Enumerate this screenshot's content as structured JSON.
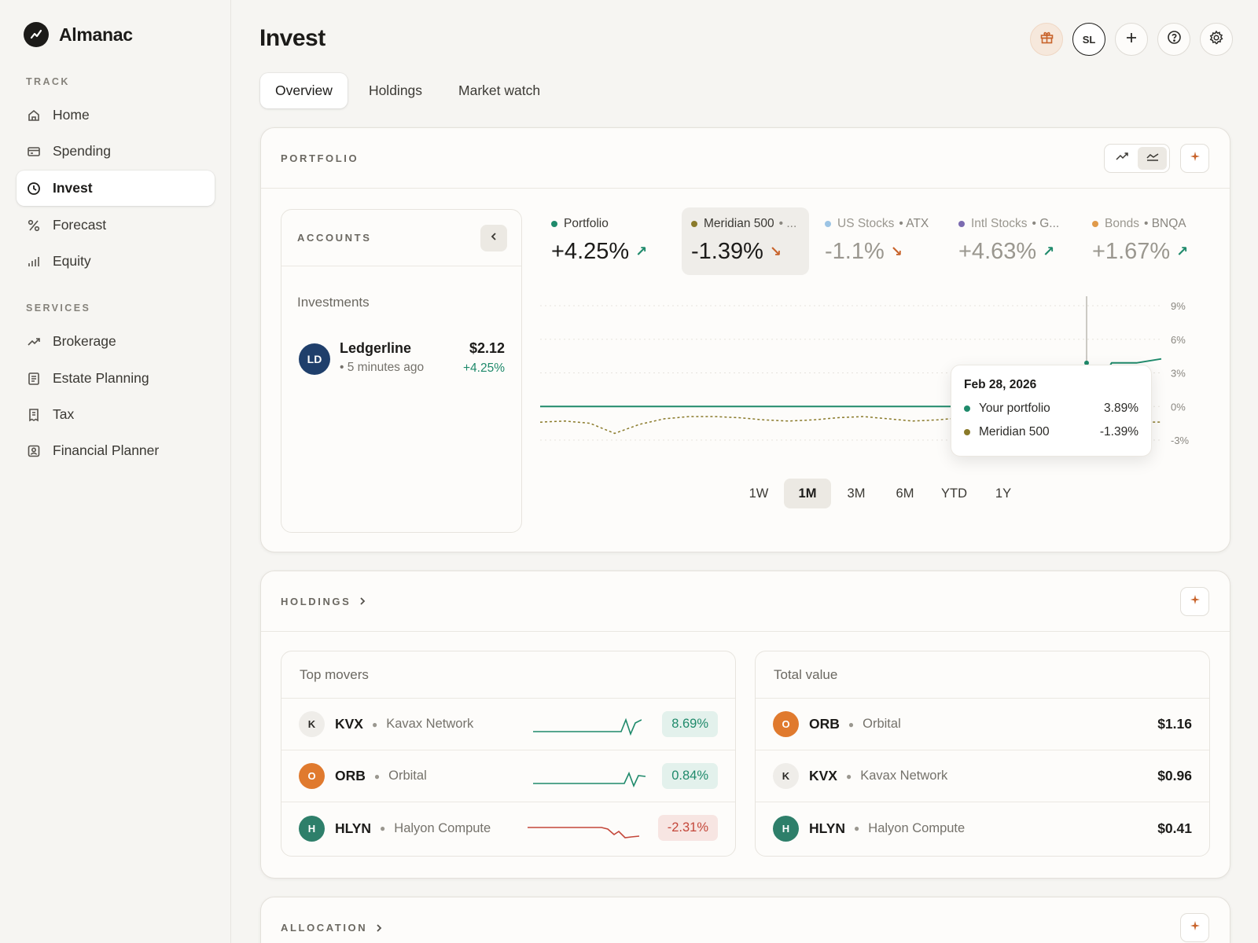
{
  "app": {
    "name": "Almanac"
  },
  "sidebar": {
    "sections": [
      {
        "label": "TRACK"
      },
      {
        "label": "SERVICES"
      }
    ],
    "items": [
      {
        "label": "Home",
        "icon": "home-icon"
      },
      {
        "label": "Spending",
        "icon": "card-icon"
      },
      {
        "label": "Invest",
        "icon": "clock-icon",
        "active": true
      },
      {
        "label": "Forecast",
        "icon": "percent-icon"
      },
      {
        "label": "Equity",
        "icon": "bars-icon"
      },
      {
        "label": "Brokerage",
        "icon": "trend-icon"
      },
      {
        "label": "Estate Planning",
        "icon": "document-icon"
      },
      {
        "label": "Tax",
        "icon": "receipt-icon"
      },
      {
        "label": "Financial Planner",
        "icon": "person-icon"
      }
    ]
  },
  "header": {
    "title": "Invest",
    "avatar_initials": "SL"
  },
  "tabs": [
    {
      "label": "Overview",
      "active": true
    },
    {
      "label": "Holdings"
    },
    {
      "label": "Market watch"
    }
  ],
  "portfolio": {
    "label": "PORTFOLIO",
    "accounts": {
      "label": "ACCOUNTS",
      "subtitle": "Investments",
      "items": [
        {
          "initials": "LD",
          "name": "Ledgerline",
          "time": "5 minutes ago",
          "value": "$2.12",
          "change": "+4.25%"
        }
      ]
    },
    "series": [
      {
        "name": "Portfolio",
        "ticker": "",
        "value": "+4.25%",
        "direction": "up",
        "color": "#1f8a6b"
      },
      {
        "name": "Meridian 500",
        "ticker": "...",
        "value": "-1.39%",
        "direction": "down",
        "color": "#8a7a2a",
        "active": true
      },
      {
        "name": "US Stocks",
        "ticker": "ATX",
        "value": "-1.1%",
        "direction": "down",
        "color": "#9cc4e4"
      },
      {
        "name": "Intl Stocks",
        "ticker": "G...",
        "value": "+4.63%",
        "direction": "up",
        "color": "#7b6bb0"
      },
      {
        "name": "Bonds",
        "ticker": "BNQA",
        "value": "+1.67%",
        "direction": "up",
        "color": "#e09a4a"
      }
    ],
    "tooltip": {
      "date": "Feb 28, 2026",
      "rows": [
        {
          "label": "Your portfolio",
          "value": "3.89%",
          "color": "#1f8a6b"
        },
        {
          "label": "Meridian 500",
          "value": "-1.39%",
          "color": "#8a7a2a"
        }
      ]
    },
    "ranges": [
      {
        "label": "1W"
      },
      {
        "label": "1M",
        "active": true
      },
      {
        "label": "3M"
      },
      {
        "label": "6M"
      },
      {
        "label": "YTD"
      },
      {
        "label": "1Y"
      }
    ],
    "y_ticks": [
      "9%",
      "6%",
      "3%",
      "0%",
      "-3%"
    ]
  },
  "chart_data": {
    "type": "line",
    "ylim": [
      -3,
      9
    ],
    "y_ticks": [
      "9%",
      "6%",
      "3%",
      "0%",
      "-3%"
    ],
    "series": [
      {
        "name": "Your portfolio",
        "values": [
          0,
          0,
          0,
          0,
          0,
          0,
          0,
          0,
          0,
          0,
          0,
          0,
          0,
          0,
          0,
          0,
          0,
          0,
          0,
          0,
          0,
          0,
          0,
          3.89,
          3.89,
          4.25
        ]
      },
      {
        "name": "Meridian 500",
        "values": [
          -1.4,
          -1.3,
          -1.5,
          -2.4,
          -1.6,
          -1.1,
          -0.9,
          -0.9,
          -1.0,
          -1.2,
          -1.3,
          -1.2,
          -1.0,
          -0.9,
          -1.1,
          -1.3,
          -1.2,
          -1.0,
          -1.1,
          -1.3,
          -1.2,
          -1.4,
          -1.3,
          -1.39,
          -1.4,
          -1.39
        ]
      }
    ]
  },
  "holdings": {
    "label": "HOLDINGS",
    "top_movers": {
      "title": "Top movers",
      "rows": [
        {
          "initial": "K",
          "ticker": "KVX",
          "company": "Kavax Network",
          "change": "8.69%",
          "positive": true
        },
        {
          "initial": "O",
          "ticker": "ORB",
          "company": "Orbital",
          "change": "0.84%",
          "positive": true
        },
        {
          "initial": "H",
          "ticker": "HLYN",
          "company": "Halyon Compute",
          "change": "-2.31%",
          "positive": false
        }
      ]
    },
    "total_value": {
      "title": "Total value",
      "rows": [
        {
          "initial": "O",
          "ticker": "ORB",
          "company": "Orbital",
          "value": "$1.16"
        },
        {
          "initial": "K",
          "ticker": "KVX",
          "company": "Kavax Network",
          "value": "$0.96"
        },
        {
          "initial": "H",
          "ticker": "HLYN",
          "company": "Halyon Compute",
          "value": "$0.41"
        }
      ]
    }
  },
  "allocation": {
    "label": "ALLOCATION"
  }
}
